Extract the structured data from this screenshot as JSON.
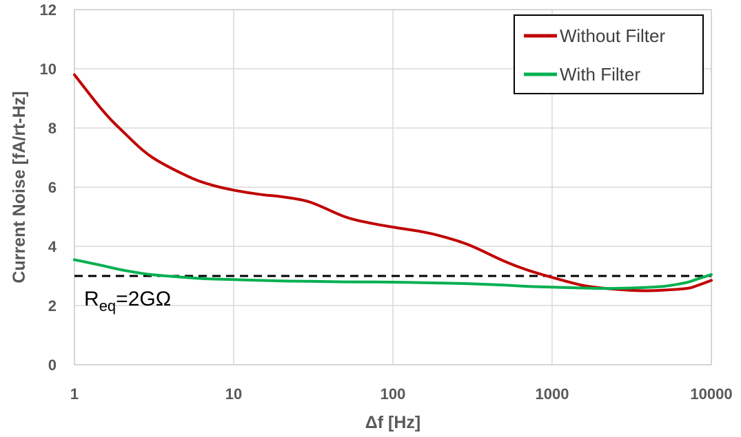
{
  "chart_data": {
    "type": "line",
    "title": "",
    "xlabel": "Δf [Hz]",
    "ylabel": "Current Noise [fA/rt-Hz]",
    "x_scale": "log",
    "xlim": [
      1,
      10000
    ],
    "ylim": [
      0,
      12
    ],
    "x_ticks": [
      1,
      10,
      100,
      1000,
      10000
    ],
    "x_tick_labels": [
      "1",
      "10",
      "100",
      "1000",
      "10000"
    ],
    "y_ticks": [
      0,
      2,
      4,
      6,
      8,
      10,
      12
    ],
    "y_tick_labels": [
      "0",
      "2",
      "4",
      "6",
      "8",
      "10",
      "12"
    ],
    "grid": true,
    "legend_position": "top-right",
    "series": [
      {
        "name": "Without Filter",
        "color": "#C00000",
        "x": [
          1,
          1.5,
          2,
          3,
          5,
          7,
          10,
          15,
          20,
          30,
          50,
          70,
          100,
          150,
          200,
          300,
          500,
          700,
          1000,
          1500,
          2000,
          3000,
          4000,
          5000,
          7000,
          8000,
          10000
        ],
        "y": [
          9.8,
          8.6,
          7.9,
          7.05,
          6.4,
          6.1,
          5.9,
          5.75,
          5.68,
          5.5,
          5.0,
          4.8,
          4.65,
          4.5,
          4.35,
          4.05,
          3.5,
          3.2,
          2.95,
          2.7,
          2.6,
          2.52,
          2.5,
          2.52,
          2.58,
          2.66,
          2.85
        ]
      },
      {
        "name": "With Filter",
        "color": "#00B050",
        "x": [
          1,
          1.5,
          2,
          3,
          5,
          7,
          10,
          20,
          30,
          50,
          100,
          200,
          300,
          500,
          700,
          1000,
          2000,
          3000,
          5000,
          7000,
          8000,
          10000
        ],
        "y": [
          3.55,
          3.35,
          3.2,
          3.05,
          2.95,
          2.9,
          2.88,
          2.83,
          2.82,
          2.8,
          2.79,
          2.76,
          2.74,
          2.69,
          2.65,
          2.62,
          2.58,
          2.59,
          2.65,
          2.78,
          2.88,
          3.05
        ]
      }
    ],
    "reference_line": {
      "y": 3.0,
      "style": "dashed",
      "color": "#000000"
    },
    "annotation": {
      "base": "R",
      "subscript": "eq",
      "rest": "=2GΩ",
      "x": 1.15,
      "y": 2.0
    }
  }
}
